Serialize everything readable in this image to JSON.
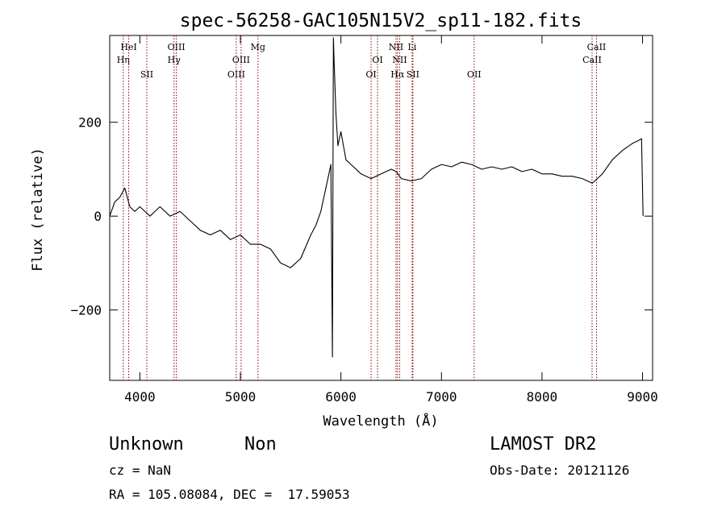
{
  "chart_data": {
    "type": "line",
    "title": "spec-56258-GAC105N15V2_sp11-182.fits",
    "xlabel": "Wavelength (Å)",
    "ylabel": "Flux (relative)",
    "xlim": [
      3700,
      9100
    ],
    "ylim": [
      -350,
      385
    ],
    "x_ticks": [
      4000,
      5000,
      6000,
      7000,
      8000,
      9000
    ],
    "y_ticks": [
      -200,
      0,
      200
    ],
    "grid": false,
    "line_color": "#000000",
    "marker_color": "#8b0000",
    "series": [
      {
        "x": [
          3700,
          3750,
          3800,
          3850,
          3900,
          3950,
          4000,
          4050,
          4100,
          4150,
          4200,
          4300,
          4400,
          4500,
          4600,
          4700,
          4800,
          4900,
          5000,
          5100,
          5200,
          5300,
          5400,
          5500,
          5600,
          5700,
          5750,
          5800,
          5850,
          5900,
          5915,
          5925,
          5932,
          5940,
          5950,
          5970,
          6000,
          6050,
          6100,
          6200,
          6300,
          6400,
          6500,
          6550,
          6600,
          6700,
          6800,
          6900,
          7000,
          7100,
          7200,
          7300,
          7400,
          7500,
          7600,
          7700,
          7800,
          7900,
          8000,
          8100,
          8200,
          8300,
          8400,
          8450,
          8500,
          8550,
          8600,
          8700,
          8800,
          8900,
          8950,
          8990,
          9005
        ],
        "y": [
          0,
          30,
          40,
          60,
          20,
          10,
          20,
          10,
          0,
          10,
          20,
          0,
          10,
          -10,
          -30,
          -40,
          -30,
          -50,
          -40,
          -60,
          -60,
          -70,
          -100,
          -110,
          -90,
          -40,
          -20,
          10,
          60,
          110,
          -300,
          380,
          330,
          280,
          220,
          150,
          180,
          120,
          110,
          90,
          80,
          90,
          100,
          95,
          80,
          75,
          80,
          100,
          110,
          105,
          115,
          110,
          100,
          105,
          100,
          105,
          95,
          100,
          90,
          90,
          85,
          85,
          80,
          75,
          70,
          80,
          90,
          120,
          140,
          155,
          160,
          165,
          0
        ]
      }
    ],
    "line_markers": [
      {
        "label": "HeI",
        "x": 3889,
        "row": 1
      },
      {
        "label": "Hη",
        "x": 3835,
        "row": 2
      },
      {
        "label": "SII",
        "x": 4069,
        "row": 3
      },
      {
        "label": "OIII",
        "x": 4363,
        "row": 1
      },
      {
        "label": "Hγ",
        "x": 4340,
        "row": 2
      },
      {
        "label": "OIII",
        "x": 4959,
        "row": 3
      },
      {
        "label": "OIII",
        "x": 5007,
        "row": 2
      },
      {
        "label": "Mg",
        "x": 5175,
        "row": 1
      },
      {
        "label": "OI",
        "x": 6300,
        "row": 3
      },
      {
        "label": "OI",
        "x": 6364,
        "row": 2
      },
      {
        "label": "NII",
        "x": 6548,
        "row": 1
      },
      {
        "label": "NII",
        "x": 6584,
        "row": 2
      },
      {
        "label": "Hα",
        "x": 6563,
        "row": 3
      },
      {
        "label": "Li",
        "x": 6708,
        "row": 1
      },
      {
        "label": "SII",
        "x": 6716,
        "row": 3
      },
      {
        "label": "OII",
        "x": 7325,
        "row": 3
      },
      {
        "label": "CaII",
        "x": 8542,
        "row": 1
      },
      {
        "label": "CaII",
        "x": 8498,
        "row": 2
      }
    ]
  },
  "footer": {
    "class": "Unknown",
    "subclass": "Non",
    "survey": "LAMOST DR2",
    "cz": "cz = NaN",
    "obs_date": "Obs-Date: 20121126",
    "coords": "RA = 105.08084, DEC =  17.59053"
  }
}
